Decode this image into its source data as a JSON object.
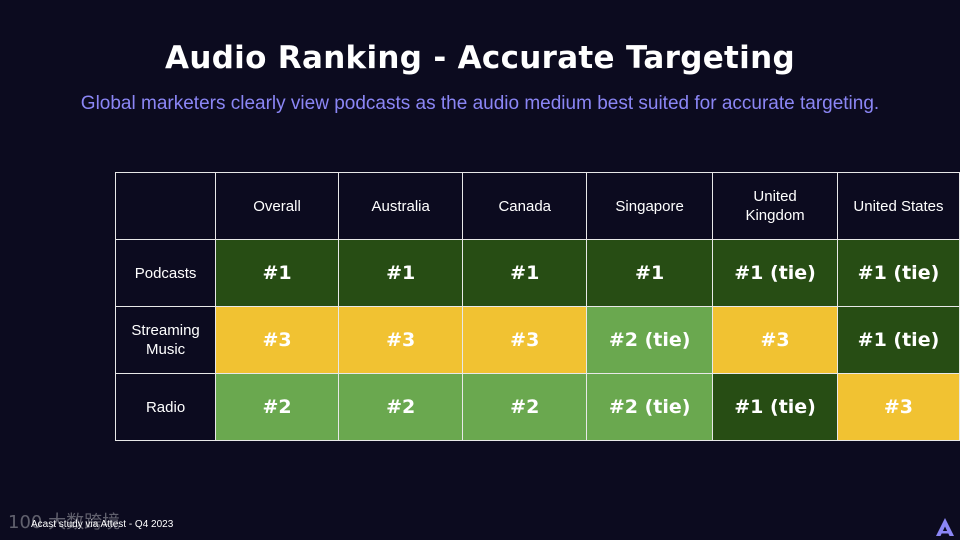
{
  "title": "Audio Ranking - Accurate Targeting",
  "subtitle": "Global marketers clearly view podcasts as the audio medium best suited for accurate targeting.",
  "table": {
    "columns": [
      "Overall",
      "Australia",
      "Canada",
      "Singapore",
      "United Kingdom",
      "United States"
    ],
    "rows": [
      {
        "label": "Podcasts",
        "cells": [
          "#1",
          "#1",
          "#1",
          "#1",
          "#1 (tie)",
          "#1 (tie)"
        ]
      },
      {
        "label": "Streaming Music",
        "cells": [
          "#3",
          "#3",
          "#3",
          "#2 (tie)",
          "#3",
          "#1 (tie)"
        ]
      },
      {
        "label": "Radio",
        "cells": [
          "#2",
          "#2",
          "#2",
          "#2 (tie)",
          "#1 (tie)",
          "#3"
        ]
      }
    ]
  },
  "colors": {
    "rank1": "#274d14",
    "rank2": "#6aa84f",
    "rank3": "#f1c232",
    "background": "#0c0b1f",
    "subtitle": "#8b86f5"
  },
  "footer": "Acast study via Attest - Q4 2023",
  "watermark": "100 大数跨境",
  "logo_icon": "acast-logo-icon"
}
